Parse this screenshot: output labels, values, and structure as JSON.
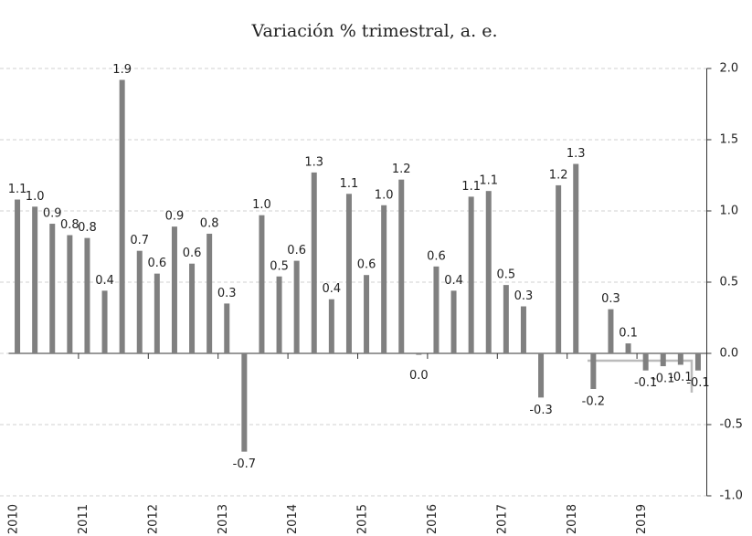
{
  "chart_data": {
    "type": "bar",
    "title": "Variación % trimestral, a. e.",
    "categories": [
      "2010",
      null,
      null,
      null,
      "2011",
      null,
      null,
      null,
      "2012",
      null,
      null,
      null,
      "2013",
      null,
      null,
      null,
      "2014",
      null,
      null,
      null,
      "2015",
      null,
      null,
      null,
      "2016",
      null,
      null,
      null,
      "2017",
      null,
      null,
      null,
      "2018",
      null,
      null,
      null,
      "2019",
      null,
      null,
      null
    ],
    "values": [
      1.08,
      1.03,
      0.91,
      0.83,
      0.81,
      0.44,
      1.92,
      0.72,
      0.56,
      0.89,
      0.63,
      0.84,
      0.35,
      -0.69,
      0.97,
      0.54,
      0.65,
      1.27,
      0.38,
      1.12,
      0.55,
      1.04,
      1.22,
      -0.01,
      0.61,
      0.44,
      1.1,
      1.14,
      0.48,
      0.33,
      -0.31,
      1.18,
      1.33,
      -0.25,
      0.31,
      0.07,
      -0.12,
      -0.09,
      -0.08,
      -0.12
    ],
    "value_labels": [
      "1.1",
      "1.0",
      "0.9",
      "0.8",
      "0.8",
      "0.4",
      "1.9",
      "0.7",
      "0.6",
      "0.9",
      "0.6",
      "0.8",
      "0.3",
      "-0.7",
      "1.0",
      "0.5",
      "0.6",
      "1.3",
      "0.4",
      "1.1",
      "0.6",
      "1.0",
      "1.2",
      "0.0",
      "0.6",
      "0.4",
      "1.1",
      "1.1",
      "0.5",
      "0.3",
      "-0.3",
      "1.2",
      "1.3",
      "-0.2",
      "0.3",
      "0.1",
      "-0.1",
      "-0.1",
      "-0.1",
      "-0.1"
    ],
    "color": "#808080",
    "ylim": [
      -1,
      2
    ],
    "yticks": [
      {
        "value": -1,
        "label": "-1.0"
      },
      {
        "value": -0.5,
        "label": "-0.5"
      },
      {
        "value": 0,
        "label": "0.0"
      },
      {
        "value": 0.5,
        "label": "0.5"
      },
      {
        "value": 1,
        "label": "1.0"
      },
      {
        "value": 1.5,
        "label": "1.5"
      },
      {
        "value": 2,
        "label": "2.0"
      }
    ],
    "grid": true
  }
}
